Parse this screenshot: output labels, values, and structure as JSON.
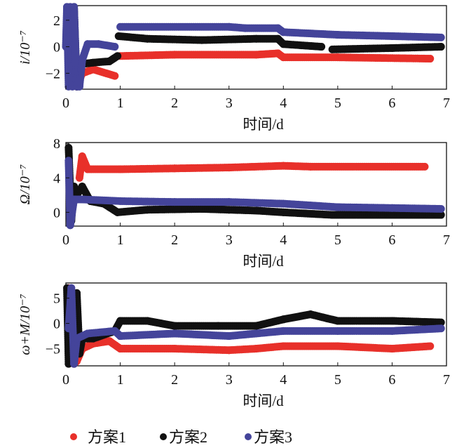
{
  "colors": {
    "方案1": "#e8302a",
    "方案2": "#111111",
    "方案3": "#44449a"
  },
  "legend": [
    "方案1",
    "方案2",
    "方案3"
  ],
  "chart_data": [
    {
      "type": "scatter",
      "title": "",
      "xlabel": "时间/d",
      "ylabel": "i/10⁻⁷",
      "xlim": [
        0,
        7
      ],
      "ylim": [
        -3.2,
        3.1
      ],
      "xticks": [
        "0",
        "1",
        "2",
        "3",
        "4",
        "5",
        "6",
        "7"
      ],
      "yticks": [
        {
          "v": 2,
          "label": "2"
        },
        {
          "v": 0,
          "label": "0"
        },
        {
          "v": -2,
          "label": "−2"
        }
      ],
      "series": [
        {
          "name": "方案1",
          "points": [
            [
              0.2,
              -3
            ],
            [
              0.3,
              -2
            ],
            [
              0.5,
              -1.7
            ],
            [
              0.9,
              -2.2
            ],
            null,
            [
              1,
              -0.7
            ],
            [
              2,
              -0.6
            ],
            [
              3.5,
              -0.6
            ],
            [
              3.9,
              -0.5
            ],
            [
              4,
              -0.8
            ],
            [
              5,
              -0.8
            ],
            [
              6.7,
              -0.9
            ]
          ]
        },
        {
          "name": "方案2",
          "points": [
            [
              0.15,
              3
            ],
            [
              0.2,
              -3
            ],
            [
              0.3,
              -1.3
            ],
            [
              0.5,
              -1.2
            ],
            [
              0.8,
              -1.1
            ],
            [
              0.95,
              -0.7
            ],
            null,
            [
              0.97,
              0.8
            ],
            [
              1.5,
              0.6
            ],
            [
              2.5,
              0.5
            ],
            [
              3.5,
              0.6
            ],
            [
              3.9,
              0.6
            ],
            [
              4,
              0.2
            ],
            [
              4.7,
              0
            ],
            null,
            [
              4.9,
              -0.2
            ],
            [
              6,
              -0.1
            ],
            [
              6.9,
              0
            ]
          ]
        },
        {
          "name": "方案3",
          "points": [
            [
              0,
              0
            ],
            [
              0.02,
              3
            ],
            [
              0.05,
              -3
            ],
            [
              0.08,
              3
            ],
            [
              0.12,
              -3
            ],
            [
              0.15,
              3
            ],
            [
              0.2,
              -3
            ],
            [
              0.25,
              -3
            ],
            [
              0.3,
              -1
            ],
            [
              0.4,
              0.2
            ],
            [
              0.6,
              0.2
            ],
            [
              0.9,
              0
            ],
            null,
            [
              1,
              1.5
            ],
            [
              3,
              1.5
            ],
            [
              3.3,
              1.4
            ],
            [
              3.9,
              1.4
            ],
            [
              4,
              1.1
            ],
            [
              5,
              0.9
            ],
            [
              6,
              0.8
            ],
            [
              6.9,
              0.7
            ]
          ]
        }
      ]
    },
    {
      "type": "scatter",
      "title": "",
      "xlabel": "时间/d",
      "ylabel": "Ω/10⁻⁷",
      "xlim": [
        0,
        7
      ],
      "ylim": [
        -1.6,
        8.1
      ],
      "xticks": [
        "0",
        "1",
        "2",
        "3",
        "4",
        "5",
        "6",
        "7"
      ],
      "yticks": [
        {
          "v": 8,
          "label": "8"
        },
        {
          "v": 4,
          "label": "4"
        },
        {
          "v": 0,
          "label": "0"
        }
      ],
      "series": [
        {
          "name": "方案1",
          "points": [
            [
              0.25,
              4
            ],
            [
              0.3,
              6.5
            ],
            [
              0.4,
              5
            ],
            [
              1,
              5
            ],
            [
              2,
              5.1
            ],
            [
              3,
              5.2
            ],
            [
              4,
              5.4
            ],
            [
              4.5,
              5.3
            ],
            [
              6.6,
              5.3
            ]
          ]
        },
        {
          "name": "方案2",
          "points": [
            [
              0.05,
              7.5
            ],
            [
              0.1,
              -1
            ],
            [
              0.15,
              3
            ],
            [
              0.2,
              2
            ],
            [
              0.3,
              3
            ],
            [
              0.45,
              1.3
            ],
            [
              0.7,
              1
            ],
            [
              0.95,
              0
            ],
            [
              1.5,
              0.3
            ],
            [
              2.5,
              0.4
            ],
            [
              3,
              0.3
            ],
            [
              3.5,
              0.2
            ],
            [
              4,
              0
            ],
            [
              4.9,
              -0.3
            ],
            [
              6,
              -0.3
            ],
            [
              6.9,
              -0.3
            ]
          ]
        },
        {
          "name": "方案3",
          "points": [
            [
              0.05,
              6
            ],
            [
              0.08,
              -1.5
            ],
            [
              0.15,
              1.5
            ],
            [
              0.3,
              1.5
            ],
            [
              1,
              1.3
            ],
            [
              2,
              1.2
            ],
            [
              3,
              1.2
            ],
            [
              4,
              1
            ],
            [
              5,
              0.6
            ],
            [
              6,
              0.5
            ],
            [
              6.9,
              0.4
            ]
          ]
        }
      ]
    },
    {
      "type": "scatter",
      "title": "",
      "xlabel": "时间/d",
      "ylabel": "ω+M/10⁻⁷",
      "xlim": [
        0,
        7
      ],
      "ylim": [
        -8.4,
        8
      ],
      "xticks": [
        "0",
        "1",
        "2",
        "3",
        "4",
        "5",
        "6",
        "7"
      ],
      "yticks": [
        {
          "v": 5,
          "label": "5"
        },
        {
          "v": 0,
          "label": "0"
        },
        {
          "v": -5,
          "label": "−5"
        }
      ],
      "series": [
        {
          "name": "方案1",
          "points": [
            [
              0.05,
              7
            ],
            [
              0.15,
              -8
            ],
            [
              0.2,
              -7.5
            ],
            [
              0.3,
              -5
            ],
            [
              0.5,
              -4
            ],
            [
              0.8,
              -3.5
            ],
            [
              1,
              -5
            ],
            [
              2,
              -5
            ],
            [
              3,
              -5.3
            ],
            [
              3.5,
              -5
            ],
            [
              4,
              -4.5
            ],
            [
              5,
              -4.5
            ],
            [
              6,
              -5
            ],
            [
              6.7,
              -4.5
            ]
          ]
        },
        {
          "name": "方案2",
          "points": [
            [
              0.02,
              7
            ],
            [
              0.05,
              -8
            ],
            [
              0.1,
              6
            ],
            [
              0.15,
              -8
            ],
            [
              0.2,
              6
            ],
            [
              0.25,
              -6
            ],
            [
              0.3,
              -3
            ],
            [
              0.5,
              -3
            ],
            [
              0.9,
              -1.5
            ],
            [
              1,
              0.5
            ],
            [
              1.5,
              0.5
            ],
            [
              2,
              -0.5
            ],
            [
              2.8,
              -0.5
            ],
            [
              3.5,
              -0.5
            ],
            [
              4,
              0.8
            ],
            [
              4.5,
              1.8
            ],
            [
              4.8,
              1
            ],
            [
              5,
              0.5
            ],
            [
              6,
              0.5
            ],
            [
              6.9,
              0.2
            ]
          ]
        },
        {
          "name": "方案3",
          "points": [
            [
              0.05,
              -1
            ],
            [
              0.1,
              7
            ],
            [
              0.15,
              -8
            ],
            [
              0.2,
              -3
            ],
            [
              0.4,
              -2
            ],
            [
              0.9,
              -1.5
            ],
            [
              1,
              -2.5
            ],
            [
              2,
              -2
            ],
            [
              3,
              -2.5
            ],
            [
              4,
              -1.5
            ],
            [
              5,
              -1.5
            ],
            [
              6,
              -1.5
            ],
            [
              6.9,
              -1
            ]
          ]
        }
      ]
    }
  ]
}
